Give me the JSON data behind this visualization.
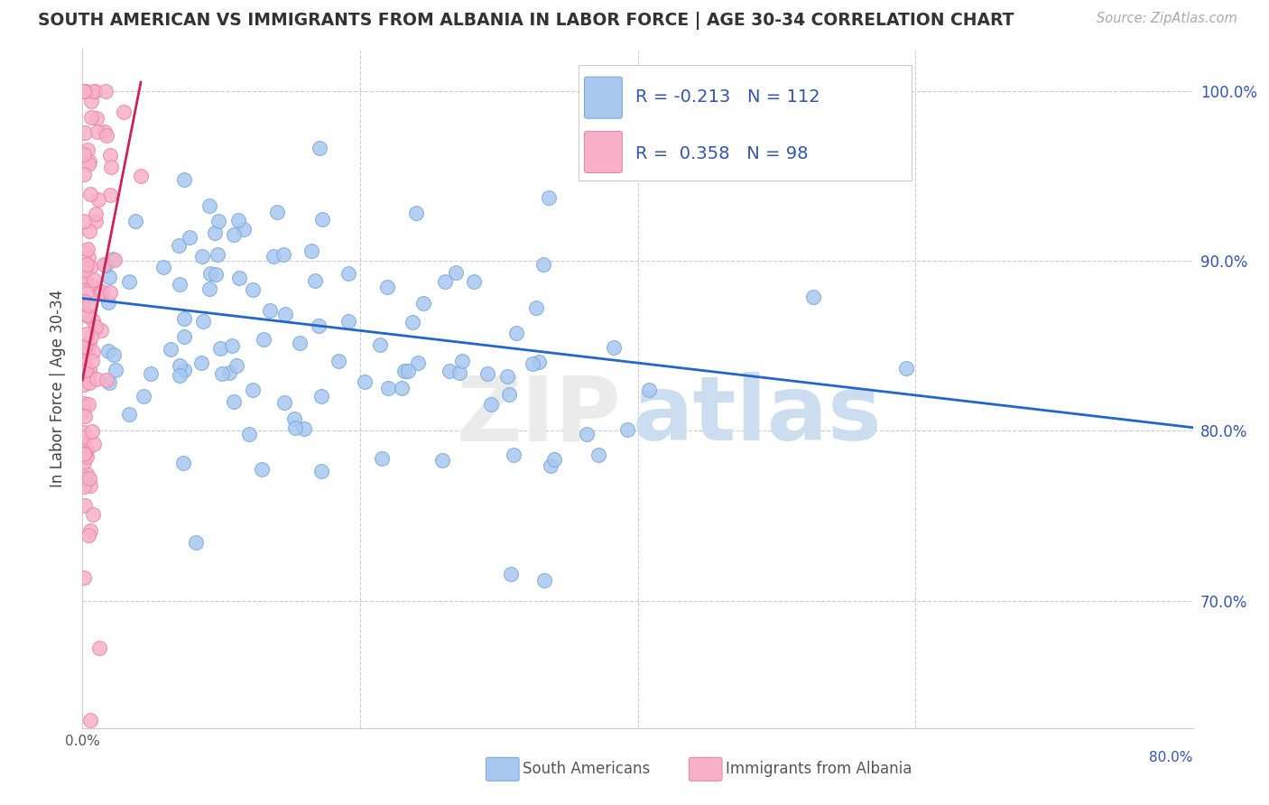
{
  "title": "SOUTH AMERICAN VS IMMIGRANTS FROM ALBANIA IN LABOR FORCE | AGE 30-34 CORRELATION CHART",
  "source": "Source: ZipAtlas.com",
  "ylabel": "In Labor Force | Age 30-34",
  "right_yticks": [
    "100.0%",
    "90.0%",
    "80.0%",
    "70.0%"
  ],
  "right_ytick_vals": [
    1.0,
    0.9,
    0.8,
    0.7
  ],
  "legend_blue_label": "South Americans",
  "legend_pink_label": "Immigrants from Albania",
  "blue_color": "#a8c8f0",
  "blue_edge": "#7aaad8",
  "pink_color": "#f8b0c8",
  "pink_edge": "#e888a8",
  "trend_blue_color": "#2266cc",
  "trend_pink_color": "#cc2255",
  "text_color": "#3355aa",
  "xmin": 0.0,
  "xmax": 0.8,
  "ymin": 0.625,
  "ymax": 1.025,
  "blue_trend_x": [
    0.0,
    0.8
  ],
  "blue_trend_y": [
    0.878,
    0.802
  ],
  "pink_trend_x": [
    0.0,
    0.042
  ],
  "pink_trend_y": [
    0.83,
    1.005
  ]
}
